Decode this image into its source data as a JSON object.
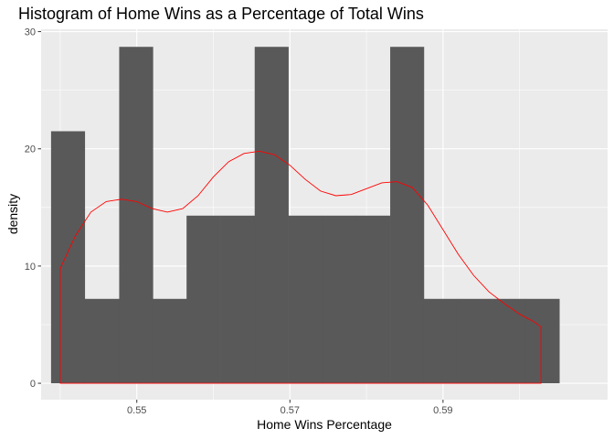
{
  "chart_data": {
    "type": "bar",
    "title": "Histogram of Home Wins as a Percentage of Total Wins",
    "xlabel": "Home Wins Percentage",
    "ylabel": "density",
    "xlim": [
      0.5375,
      0.6115
    ],
    "ylim": [
      -1.4,
      30.2
    ],
    "x_ticks": [
      0.55,
      0.57,
      0.59
    ],
    "x_tick_labels": [
      "0.55",
      "0.57",
      "0.59"
    ],
    "y_ticks": [
      0,
      10,
      20,
      30
    ],
    "y_tick_labels": [
      "0",
      "10",
      "20",
      "30"
    ],
    "grid": true,
    "legend": "none",
    "series": [
      {
        "type": "histogram",
        "bins": [
          {
            "x0": 0.5388,
            "x1": 0.5432,
            "y": 21.5
          },
          {
            "x0": 0.5432,
            "x1": 0.5477,
            "y": 7.2
          },
          {
            "x0": 0.5477,
            "x1": 0.5521,
            "y": 28.7
          },
          {
            "x0": 0.5521,
            "x1": 0.5565,
            "y": 7.2
          },
          {
            "x0": 0.5565,
            "x1": 0.5609,
            "y": 14.3
          },
          {
            "x0": 0.5609,
            "x1": 0.5654,
            "y": 14.3
          },
          {
            "x0": 0.5654,
            "x1": 0.5698,
            "y": 28.7
          },
          {
            "x0": 0.5698,
            "x1": 0.5742,
            "y": 14.3
          },
          {
            "x0": 0.5742,
            "x1": 0.5786,
            "y": 14.3
          },
          {
            "x0": 0.5786,
            "x1": 0.5831,
            "y": 14.3
          },
          {
            "x0": 0.5831,
            "x1": 0.5875,
            "y": 28.7
          },
          {
            "x0": 0.5875,
            "x1": 0.5919,
            "y": 7.2
          },
          {
            "x0": 0.5919,
            "x1": 0.5963,
            "y": 7.2
          },
          {
            "x0": 0.5963,
            "x1": 0.6008,
            "y": 7.2
          },
          {
            "x0": 0.6008,
            "x1": 0.6052,
            "y": 7.2
          }
        ]
      },
      {
        "type": "density",
        "points": [
          [
            0.54,
            0
          ],
          [
            0.54,
            9.8
          ],
          [
            0.542,
            12.6
          ],
          [
            0.544,
            14.6
          ],
          [
            0.546,
            15.5
          ],
          [
            0.548,
            15.7
          ],
          [
            0.55,
            15.5
          ],
          [
            0.552,
            14.9
          ],
          [
            0.554,
            14.6
          ],
          [
            0.556,
            14.9
          ],
          [
            0.558,
            16.0
          ],
          [
            0.56,
            17.6
          ],
          [
            0.562,
            18.9
          ],
          [
            0.564,
            19.6
          ],
          [
            0.566,
            19.8
          ],
          [
            0.568,
            19.5
          ],
          [
            0.57,
            18.6
          ],
          [
            0.572,
            17.4
          ],
          [
            0.574,
            16.4
          ],
          [
            0.576,
            16.0
          ],
          [
            0.578,
            16.1
          ],
          [
            0.58,
            16.6
          ],
          [
            0.582,
            17.1
          ],
          [
            0.584,
            17.2
          ],
          [
            0.586,
            16.7
          ],
          [
            0.588,
            15.2
          ],
          [
            0.59,
            13.1
          ],
          [
            0.592,
            11.0
          ],
          [
            0.594,
            9.2
          ],
          [
            0.596,
            7.8
          ],
          [
            0.598,
            6.8
          ],
          [
            0.6,
            5.9
          ],
          [
            0.602,
            5.2
          ],
          [
            0.6028,
            4.8
          ],
          [
            0.6028,
            0
          ]
        ]
      }
    ]
  },
  "colors": {
    "panel": "#ebebeb",
    "grid_major": "#ffffff",
    "bar_fill": "#595959",
    "density_line": "#ff0000",
    "tick_text": "#4d4d4d"
  }
}
